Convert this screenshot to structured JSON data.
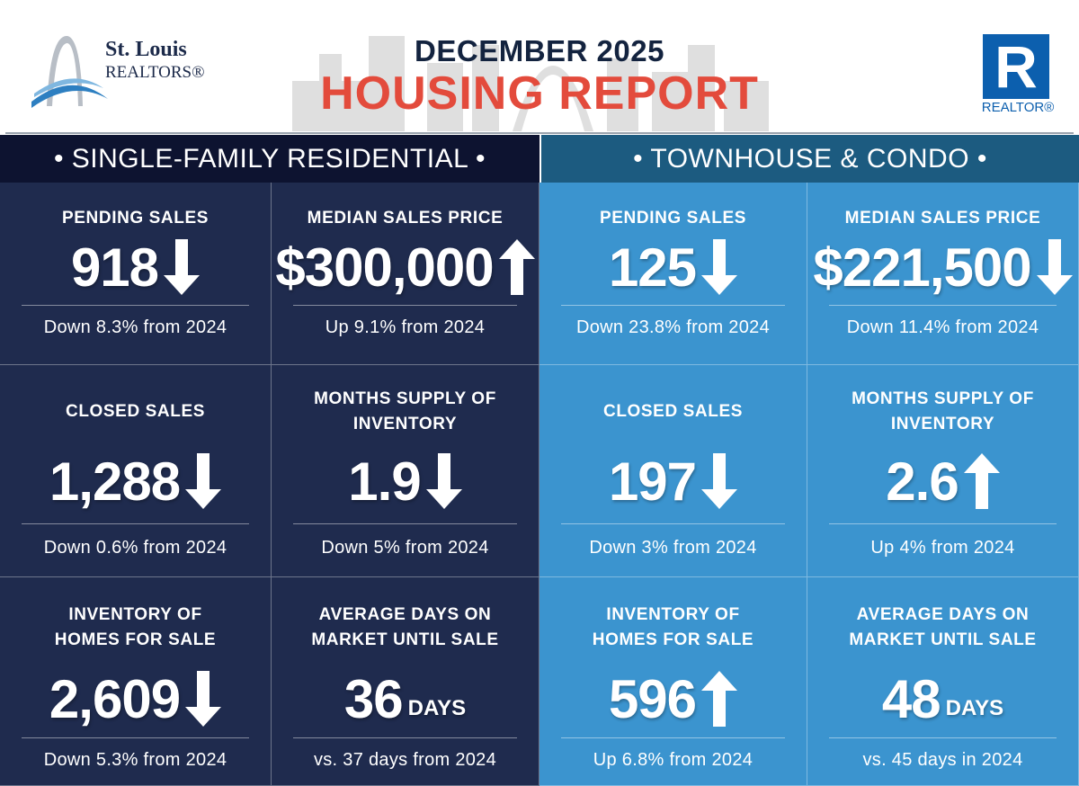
{
  "header": {
    "logo_left_line1": "St. Louis",
    "logo_left_line2": "REALTORS®",
    "title_line1": "DECEMBER 2025",
    "title_line2": "HOUSING REPORT",
    "logo_right_letter": "R",
    "logo_right_text": "REALTOR®"
  },
  "colors": {
    "title_red": "#e34b3c",
    "left_band": "#0d1330",
    "left_cell": "#1f2b4e",
    "right_band": "#1c5b80",
    "right_cell": "#3b94cf",
    "realtor_blue": "#0c5fae"
  },
  "sections": [
    {
      "title": "• SINGLE-FAMILY RESIDENTIAL •",
      "metrics": [
        {
          "label": "PENDING SALES",
          "value": "918",
          "trend": "down",
          "note": "Down 8.3% from 2024",
          "bg_icon": "house-icon"
        },
        {
          "label": "MEDIAN SALES PRICE",
          "value": "$300,000",
          "trend": "up",
          "note": "Up 9.1% from 2024",
          "bg_icon": "price-tag-icon"
        },
        {
          "label": "CLOSED SALES",
          "value": "1,288",
          "trend": "down",
          "note": "Down 0.6% from 2024",
          "bg_icon": "sold-sign-icon"
        },
        {
          "label": "MONTHS SUPPLY OF INVENTORY",
          "value": "1.9",
          "trend": "down",
          "note": "Down 5% from 2024",
          "bg_icon": "houses-icon"
        },
        {
          "label": "INVENTORY OF HOMES FOR SALE",
          "value": "2,609",
          "trend": "down",
          "note": "Down 5.3% from 2024",
          "bg_icon": "for-sale-sign-icon"
        },
        {
          "label": "AVERAGE DAYS ON MARKET UNTIL SALE",
          "value": "36",
          "unit": "DAYS",
          "note": "vs. 37 days from 2024",
          "bg_icon": "calendar-icon"
        }
      ]
    },
    {
      "title": "• TOWNHOUSE & CONDO •",
      "metrics": [
        {
          "label": "PENDING SALES",
          "value": "125",
          "trend": "down",
          "note": "Down 23.8% from 2024",
          "bg_icon": "building-icon"
        },
        {
          "label": "MEDIAN SALES PRICE",
          "value": "$221,500",
          "trend": "down",
          "note": "Down 11.4% from 2024",
          "bg_icon": "price-tag-icon"
        },
        {
          "label": "CLOSED SALES",
          "value": "197",
          "trend": "down",
          "note": "Down 3% from 2024",
          "bg_icon": "sold-sign-icon"
        },
        {
          "label": "MONTHS SUPPLY OF INVENTORY",
          "value": "2.6",
          "trend": "up",
          "note": "Up 4% from 2024",
          "bg_icon": "houses-icon"
        },
        {
          "label": "INVENTORY OF HOMES FOR SALE",
          "value": "596",
          "trend": "up",
          "note": "Up 6.8% from 2024",
          "bg_icon": "for-sale-sign-icon"
        },
        {
          "label": "AVERAGE DAYS ON MARKET UNTIL SALE",
          "value": "48",
          "unit": "DAYS",
          "note": "vs. 45 days in 2024",
          "bg_icon": "calendar-icon"
        }
      ]
    }
  ]
}
